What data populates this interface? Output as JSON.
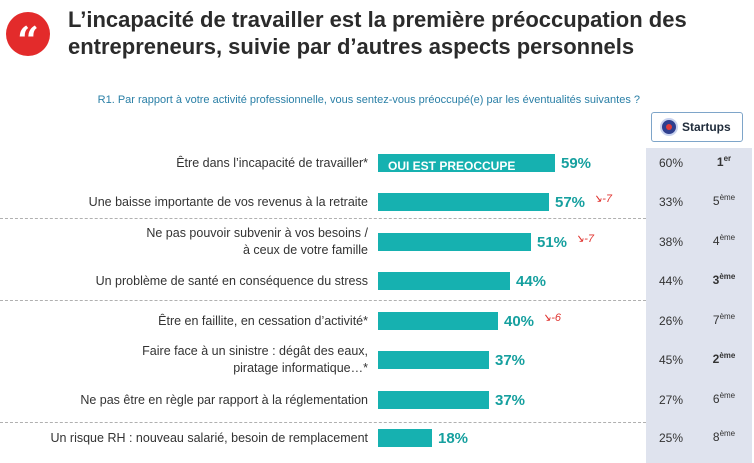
{
  "header": {
    "quote_mark": "“",
    "title_line1": "L’incapacité de travailler est la première préoccupation des",
    "title_line2": "entrepreneurs, suivie par d’autres aspects personnels",
    "question": "R1. Par rapport à votre activité professionnelle, vous sentez-vous préoccupé(e) par les éventualités suivantes ?"
  },
  "startups": {
    "label": "Startups",
    "icon": "startups-logo-icon"
  },
  "bar_overlay_label": "OUI EST PREOCCUPE",
  "chart_data": {
    "type": "bar",
    "orientation": "horizontal",
    "categories": [
      "Être dans l’incapacité de travailler*",
      "Une baisse importante de vos revenus à la retraite",
      "Ne pas pouvoir subvenir à vos besoins / à ceux de votre famille",
      "Un problème de santé en conséquence du stress",
      "Être en faillite, en cessation d’activité*",
      "Faire face à un sinistre : dégât des eaux, piratage informatique…*",
      "Ne pas être en règle par rapport à la réglementation",
      "Un risque RH : nouveau salarié, besoin de remplacement"
    ],
    "category_lines": [
      [
        "Être dans l’incapacité de travailler*"
      ],
      [
        "Une baisse importante de vos revenus à la retraite"
      ],
      [
        "Ne pas pouvoir subvenir à vos besoins /",
        "à ceux de votre famille"
      ],
      [
        "Un problème de santé en conséquence du stress"
      ],
      [
        "Être en faillite, en cessation d’activité*"
      ],
      [
        "Faire face à un sinistre : dégât des eaux,",
        "piratage informatique…*"
      ],
      [
        "Ne pas être en règle par rapport à la réglementation"
      ],
      [
        "Un risque RH : nouveau salarié, besoin de remplacement"
      ]
    ],
    "values": [
      59,
      57,
      51,
      44,
      40,
      37,
      37,
      18
    ],
    "value_labels": [
      "59%",
      "57%",
      "51%",
      "44%",
      "40%",
      "37%",
      "37%",
      "18%"
    ],
    "trends": [
      "",
      "↘-7",
      "↘-7",
      "",
      "↘-6",
      "",
      "",
      ""
    ],
    "xlim": [
      0,
      100
    ],
    "startups_pct": [
      "60%",
      "33%",
      "38%",
      "44%",
      "26%",
      "45%",
      "27%",
      "25%"
    ],
    "startups_rank": [
      {
        "num": "1",
        "suffix": "er",
        "bold": true
      },
      {
        "num": "5",
        "suffix": "ème",
        "bold": false
      },
      {
        "num": "4",
        "suffix": "ème",
        "bold": false
      },
      {
        "num": "3",
        "suffix": "ème",
        "bold": true
      },
      {
        "num": "7",
        "suffix": "ème",
        "bold": false
      },
      {
        "num": "2",
        "suffix": "ème",
        "bold": true
      },
      {
        "num": "6",
        "suffix": "ème",
        "bold": false
      },
      {
        "num": "8",
        "suffix": "ème",
        "bold": false
      }
    ]
  },
  "colors": {
    "bar": "#16b1b0",
    "value": "#16a09f",
    "trend": "#e0322e",
    "panel": "#dfe3ee"
  }
}
